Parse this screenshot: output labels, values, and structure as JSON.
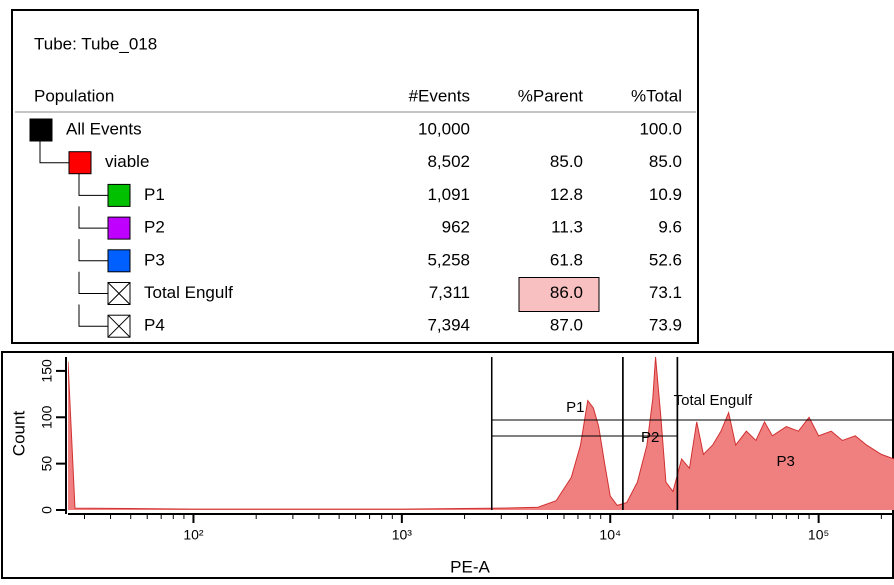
{
  "table": {
    "title": "Tube:  Tube_018",
    "columns": [
      "Population",
      "#Events",
      "%Parent",
      "%Total"
    ],
    "rows": [
      {
        "name": "All Events",
        "color": "#000000",
        "events": "10,000",
        "parent": null,
        "total": "100.0"
      },
      {
        "name": "viable",
        "color": "#ff0000",
        "events": "8,502",
        "parent": "85.0",
        "total": "85.0"
      },
      {
        "name": "P1",
        "color": "#00c000",
        "events": "1,091",
        "parent": "12.8",
        "total": "10.9"
      },
      {
        "name": "P2",
        "color": "#c000ff",
        "events": "962",
        "parent": "11.3",
        "total": "9.6"
      },
      {
        "name": "P3",
        "color": "#0060ff",
        "events": "5,258",
        "parent": "61.8",
        "total": "52.6"
      },
      {
        "name": "Total Engulf",
        "color": null,
        "events": "7,311",
        "parent": "86.0",
        "total": "73.1"
      },
      {
        "name": "P4",
        "color": null,
        "events": "7,394",
        "parent": "87.0",
        "total": "73.9"
      }
    ]
  },
  "chart_data": {
    "type": "area",
    "x_label": "PE-A",
    "y_label": "Count",
    "color": "#f08080",
    "x_log": true,
    "x": [
      25,
      27,
      100,
      1000,
      3000,
      4500,
      5500,
      6500,
      7200,
      7800,
      8300,
      8800,
      9400,
      10000,
      10800,
      12000,
      13500,
      15000,
      16000,
      16500,
      17500,
      18500,
      20000,
      22000,
      24000,
      26000,
      28000,
      31000,
      34000,
      37000,
      40000,
      45000,
      50000,
      55000,
      60000,
      70000,
      80000,
      90000,
      100000,
      115000,
      130000,
      150000,
      170000,
      200000,
      230000
    ],
    "values": [
      160,
      2,
      1,
      1,
      2,
      3,
      10,
      35,
      70,
      118,
      110,
      90,
      50,
      15,
      5,
      8,
      30,
      70,
      120,
      165,
      100,
      30,
      20,
      55,
      45,
      95,
      60,
      70,
      85,
      105,
      70,
      85,
      75,
      95,
      80,
      90,
      85,
      100,
      80,
      85,
      75,
      80,
      70,
      60,
      55
    ],
    "xlim": [
      25,
      230000
    ],
    "ylim": [
      0,
      165
    ],
    "xticks": [
      {
        "value": 100,
        "label": "10²"
      },
      {
        "value": 1000,
        "label": "10³"
      },
      {
        "value": 10000,
        "label": "10⁴"
      },
      {
        "value": 100000,
        "label": "10⁵"
      }
    ],
    "yticks": [
      0,
      50,
      100,
      150
    ],
    "gates": [
      {
        "name": "P1",
        "range": [
          2700,
          11500
        ]
      },
      {
        "name": "P2",
        "range": [
          11500,
          21000
        ]
      },
      {
        "name": "Total Engulf",
        "range": [
          2700,
          262144
        ]
      },
      {
        "name": "P3",
        "range": [
          21000,
          262144
        ]
      }
    ]
  }
}
